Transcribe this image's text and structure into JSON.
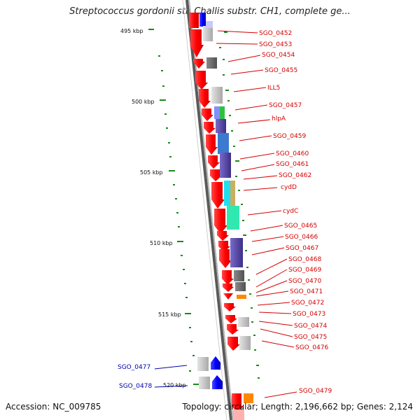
{
  "title": "Streptococcus gordonii str. Challis substr. CH1, complete ge...",
  "accession": "Accession: NC_009785",
  "topology": "Topology: circular; Length: 2,196,662 bp; Genes: 2,124",
  "colors": {
    "forward_gene": "#ff0000",
    "reverse_gene": "#0000ff",
    "label_red": "#d40000",
    "label_blue": "#0000b0",
    "gc_tick": "#1a8a1a",
    "backbone": "#8c8c8c"
  },
  "kbp_ticks": [
    "495 kbp",
    "500 kbp",
    "505 kbp",
    "510 kbp",
    "515 kbp",
    "520 kbp"
  ],
  "labels_right": [
    "SGO_0452",
    "SGO_0453",
    "SGO_0454",
    "SGO_0455",
    "ILL5",
    "SGO_0457",
    "hlpA",
    "SGO_0459",
    "SGO_0460",
    "SGO_0461",
    "SGO_0462",
    "cydD",
    "cydC",
    "SGO_0465",
    "SGO_0466",
    "SGO_0467",
    "SGO_0468",
    "SGO_0469",
    "SGO_0470",
    "SGO_0471",
    "SGO_0472",
    "SGO_0473",
    "SGO_0474",
    "SGO_0475",
    "SGO_0476",
    "SGO_0479"
  ],
  "labels_left": [
    "SGO_0477",
    "SGO_0478"
  ]
}
